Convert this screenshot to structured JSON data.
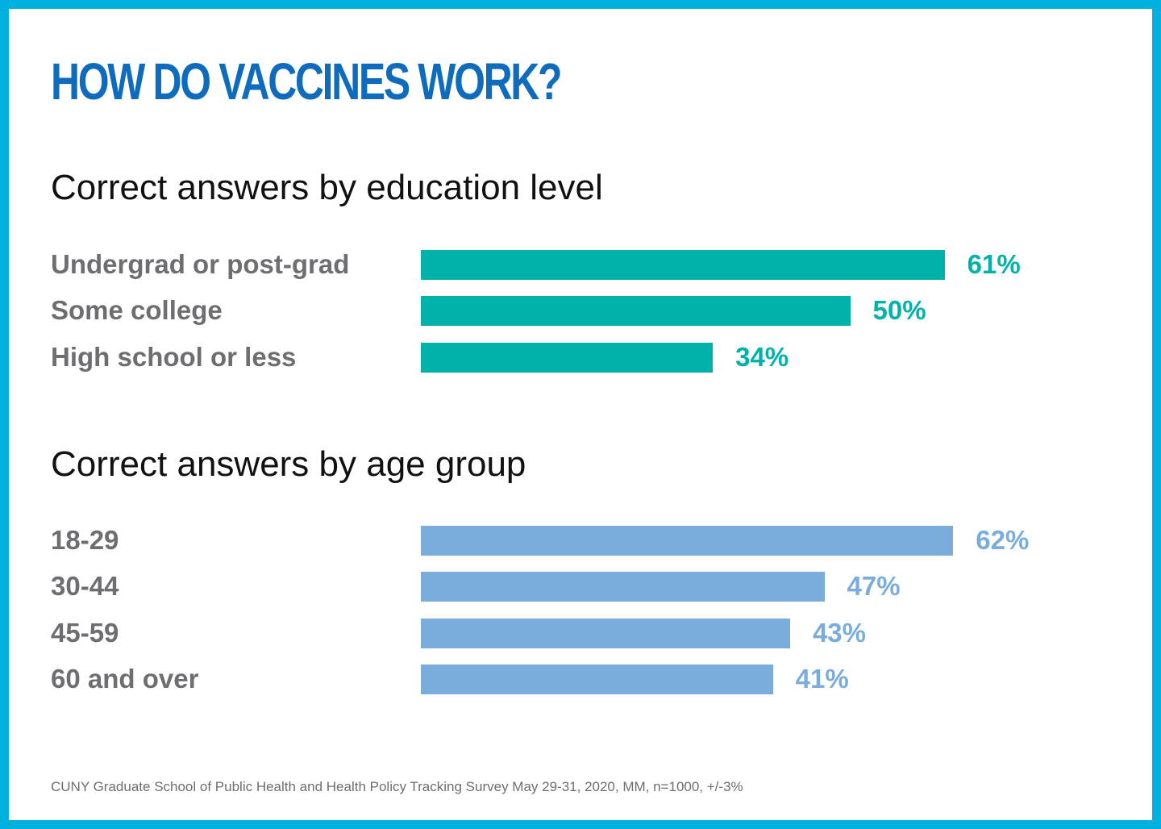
{
  "headline": "HOW DO VACCINES WORK?",
  "footnote": "CUNY Graduate School of Public Health and Health Policy Tracking Survey May 29-31, 2020, MM, n=1000, +/-3%",
  "colors": {
    "frame": "#00b0de",
    "headline": "#0f6cbd",
    "education_bars": "#00b2a9",
    "age_bars": "#7aacdc",
    "category_text": "#6d6e71"
  },
  "chart_data": [
    {
      "type": "bar",
      "orientation": "horizontal",
      "title": "Correct answers by education level",
      "categories": [
        "Undergrad or post-grad",
        "Some college",
        "High school or less"
      ],
      "values": [
        61,
        50,
        34
      ],
      "value_labels": [
        "61%",
        "50%",
        "34%"
      ],
      "unit": "%",
      "grid": false
    },
    {
      "type": "bar",
      "orientation": "horizontal",
      "title": "Correct answers by age group",
      "categories": [
        "18-29",
        "30-44",
        "45-59",
        "60 and over"
      ],
      "values": [
        62,
        47,
        43,
        41
      ],
      "value_labels": [
        "62%",
        "47%",
        "43%",
        "41%"
      ],
      "unit": "%",
      "grid": false
    }
  ]
}
